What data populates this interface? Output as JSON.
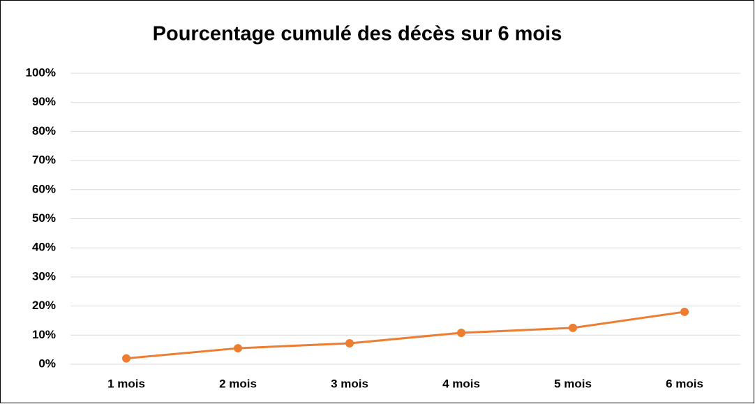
{
  "chart_data": {
    "type": "line",
    "title": "Pourcentage cumulé des décès sur 6 mois",
    "categories": [
      "1 mois",
      "2 mois",
      "3 mois",
      "4 mois",
      "5 mois",
      "6 mois"
    ],
    "values": [
      2,
      5.5,
      7.2,
      10.8,
      12.5,
      18
    ],
    "color": "#ed7d31",
    "ylim": [
      0,
      100
    ],
    "yticks": [
      {
        "value": 0,
        "label": "0%"
      },
      {
        "value": 10,
        "label": "10%"
      },
      {
        "value": 20,
        "label": "20%"
      },
      {
        "value": 30,
        "label": "30%"
      },
      {
        "value": 40,
        "label": "40%"
      },
      {
        "value": 50,
        "label": "50%"
      },
      {
        "value": 60,
        "label": "60%"
      },
      {
        "value": 70,
        "label": "70%"
      },
      {
        "value": 80,
        "label": "80%"
      },
      {
        "value": 90,
        "label": "90%"
      },
      {
        "value": 100,
        "label": "100%"
      }
    ],
    "grid": true
  }
}
